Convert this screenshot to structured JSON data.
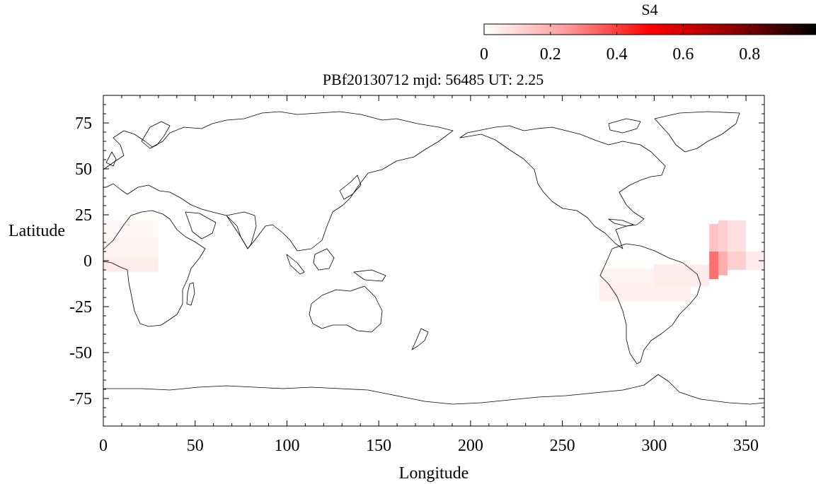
{
  "colorbar": {
    "title": "S4",
    "tick_labels": [
      "0",
      "0.2",
      "0.4",
      "0.6",
      "0.8"
    ],
    "tick_values": [
      0,
      0.2,
      0.4,
      0.6,
      0.8
    ],
    "range": [
      0,
      1
    ],
    "colors": [
      "#ffffff",
      "#ff8080",
      "#ff0000",
      "#800000",
      "#000000"
    ]
  },
  "plot_title": "PBf20130712  mjd: 56485  UT:   2.25",
  "chart_data": {
    "type": "heatmap",
    "title": "PBf20130712  mjd: 56485  UT:   2.25",
    "xlabel": "Longitude",
    "ylabel": "Latitude",
    "xlim": [
      0,
      360
    ],
    "ylim": [
      -90,
      90
    ],
    "x_ticks": [
      0,
      50,
      100,
      150,
      200,
      250,
      300,
      350
    ],
    "x_tick_labels": [
      "0",
      "50",
      "100",
      "150",
      "200",
      "250",
      "300",
      "350"
    ],
    "y_ticks": [
      75,
      50,
      25,
      0,
      -25,
      -50,
      -75
    ],
    "y_tick_labels": [
      "75",
      "50",
      "25",
      "0",
      "-25",
      "-50",
      "-75"
    ],
    "colorbar_label": "S4",
    "cells": [
      {
        "lon": [
          0,
          30
        ],
        "lat": [
          22,
          12
        ],
        "s4": 0.02
      },
      {
        "lon": [
          0,
          30
        ],
        "lat": [
          12,
          2
        ],
        "s4": 0.03
      },
      {
        "lon": [
          0,
          30
        ],
        "lat": [
          2,
          -6
        ],
        "s4": 0.05
      },
      {
        "lon": [
          270,
          300
        ],
        "lat": [
          -4,
          -12
        ],
        "s4": 0.03
      },
      {
        "lon": [
          270,
          320
        ],
        "lat": [
          -12,
          -22
        ],
        "s4": 0.04
      },
      {
        "lon": [
          300,
          330
        ],
        "lat": [
          -2,
          -14
        ],
        "s4": 0.05
      },
      {
        "lon": [
          330,
          335
        ],
        "lat": [
          20,
          5
        ],
        "s4": 0.15
      },
      {
        "lon": [
          335,
          340
        ],
        "lat": [
          22,
          5
        ],
        "s4": 0.12
      },
      {
        "lon": [
          340,
          350
        ],
        "lat": [
          22,
          5
        ],
        "s4": 0.08
      },
      {
        "lon": [
          330,
          335
        ],
        "lat": [
          5,
          -10
        ],
        "s4": 0.32
      },
      {
        "lon": [
          335,
          340
        ],
        "lat": [
          5,
          -8
        ],
        "s4": 0.2
      },
      {
        "lon": [
          340,
          350
        ],
        "lat": [
          5,
          -5
        ],
        "s4": 0.12
      },
      {
        "lon": [
          350,
          360
        ],
        "lat": [
          5,
          -5
        ],
        "s4": 0.05
      }
    ]
  }
}
